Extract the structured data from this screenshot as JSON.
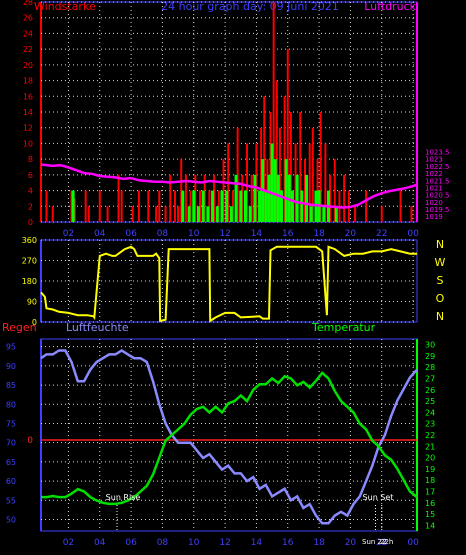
{
  "title": "24 hour graph day: 09 Juni 2021",
  "colors": {
    "background": "#000000",
    "frame": "#3f3fff",
    "wind": "#ff0000",
    "gust": "#00ff00",
    "pressure": "#ff00ff",
    "direction": "#ffff00",
    "humidity": "#8a8aff",
    "temperature": "#00e000",
    "rain": "#ff2020",
    "tick_left_top": "#ff0000",
    "tick_right_top": "#ff00ff",
    "tick_left_bottom": "#3f3fff",
    "tick_right_bottom": "#00ff00",
    "sun": "#ffffff"
  },
  "x_ticks": [
    "02",
    "04",
    "06",
    "08",
    "10",
    "12",
    "14",
    "16",
    "18",
    "20",
    "22",
    "00"
  ],
  "chart_data": [
    {
      "type": "bar",
      "name_left": "Windstärke",
      "name_right": "Luftdruck",
      "x_range_hours": [
        0.25,
        24.25
      ],
      "left_axis": {
        "min": 0,
        "max": 28,
        "ticks": [
          "0",
          "2",
          "4",
          "6",
          "8",
          "10",
          "12",
          "14",
          "16",
          "18",
          "20",
          "22",
          "24",
          "26",
          "28"
        ]
      },
      "right_axis": {
        "min": 1018.6,
        "max": 1033.9,
        "ticks": [
          "1019",
          "1019.5",
          "1020",
          "1020.5",
          "1021",
          "1021.5",
          "1022",
          "1022.5",
          "1023",
          "1023.5"
        ]
      },
      "wind_bars": [
        {
          "h": 0.6,
          "v": 4
        },
        {
          "h": 1.0,
          "v": 2
        },
        {
          "h": 2.2,
          "v": 4
        },
        {
          "h": 2.4,
          "v": 3
        },
        {
          "h": 3.1,
          "v": 4
        },
        {
          "h": 3.3,
          "v": 2
        },
        {
          "h": 4.0,
          "v": 4
        },
        {
          "h": 4.5,
          "v": 2
        },
        {
          "h": 5.2,
          "v": 6
        },
        {
          "h": 5.4,
          "v": 4
        },
        {
          "h": 6.1,
          "v": 2
        },
        {
          "h": 6.5,
          "v": 4
        },
        {
          "h": 7.1,
          "v": 4
        },
        {
          "h": 7.6,
          "v": 2
        },
        {
          "h": 7.8,
          "v": 4
        },
        {
          "h": 8.2,
          "v": 2
        },
        {
          "h": 8.5,
          "v": 6
        },
        {
          "h": 8.8,
          "v": 4
        },
        {
          "h": 9.0,
          "v": 2
        },
        {
          "h": 9.2,
          "v": 8
        },
        {
          "h": 9.5,
          "v": 6
        },
        {
          "h": 9.8,
          "v": 4
        },
        {
          "h": 10.1,
          "v": 6
        },
        {
          "h": 10.4,
          "v": 4
        },
        {
          "h": 10.7,
          "v": 6
        },
        {
          "h": 11.0,
          "v": 4
        },
        {
          "h": 11.3,
          "v": 6
        },
        {
          "h": 11.6,
          "v": 4
        },
        {
          "h": 11.9,
          "v": 8
        },
        {
          "h": 12.2,
          "v": 10
        },
        {
          "h": 12.5,
          "v": 4
        },
        {
          "h": 12.8,
          "v": 12
        },
        {
          "h": 13.1,
          "v": 6
        },
        {
          "h": 13.4,
          "v": 10
        },
        {
          "h": 13.7,
          "v": 6
        },
        {
          "h": 14.0,
          "v": 10
        },
        {
          "h": 14.3,
          "v": 12
        },
        {
          "h": 14.5,
          "v": 16
        },
        {
          "h": 14.7,
          "v": 8
        },
        {
          "h": 14.9,
          "v": 14
        },
        {
          "h": 15.1,
          "v": 28
        },
        {
          "h": 15.3,
          "v": 18
        },
        {
          "h": 15.5,
          "v": 12
        },
        {
          "h": 15.8,
          "v": 16
        },
        {
          "h": 16.0,
          "v": 22
        },
        {
          "h": 16.2,
          "v": 14
        },
        {
          "h": 16.5,
          "v": 10
        },
        {
          "h": 16.8,
          "v": 14
        },
        {
          "h": 17.1,
          "v": 8
        },
        {
          "h": 17.4,
          "v": 10
        },
        {
          "h": 17.6,
          "v": 12
        },
        {
          "h": 17.9,
          "v": 8
        },
        {
          "h": 18.1,
          "v": 14
        },
        {
          "h": 18.4,
          "v": 10
        },
        {
          "h": 18.7,
          "v": 6
        },
        {
          "h": 19.0,
          "v": 8
        },
        {
          "h": 19.3,
          "v": 4
        },
        {
          "h": 19.6,
          "v": 6
        },
        {
          "h": 19.9,
          "v": 4
        },
        {
          "h": 20.3,
          "v": 2
        },
        {
          "h": 21.0,
          "v": 4
        },
        {
          "h": 22.0,
          "v": 2
        },
        {
          "h": 23.2,
          "v": 4
        },
        {
          "h": 23.9,
          "v": 2
        }
      ],
      "gust_bars": [
        {
          "h": 2.3,
          "v": 4
        },
        {
          "h": 9.3,
          "v": 4
        },
        {
          "h": 9.7,
          "v": 2
        },
        {
          "h": 10.0,
          "v": 4
        },
        {
          "h": 10.3,
          "v": 2
        },
        {
          "h": 10.6,
          "v": 4
        },
        {
          "h": 10.9,
          "v": 2
        },
        {
          "h": 11.2,
          "v": 4
        },
        {
          "h": 11.5,
          "v": 2
        },
        {
          "h": 11.8,
          "v": 4
        },
        {
          "h": 12.1,
          "v": 4
        },
        {
          "h": 12.4,
          "v": 2
        },
        {
          "h": 12.7,
          "v": 6
        },
        {
          "h": 13.0,
          "v": 4
        },
        {
          "h": 13.3,
          "v": 4
        },
        {
          "h": 13.6,
          "v": 2
        },
        {
          "h": 13.9,
          "v": 6
        },
        {
          "h": 14.2,
          "v": 4
        },
        {
          "h": 14.4,
          "v": 8
        },
        {
          "h": 14.6,
          "v": 4
        },
        {
          "h": 14.8,
          "v": 6
        },
        {
          "h": 15.0,
          "v": 10
        },
        {
          "h": 15.2,
          "v": 8
        },
        {
          "h": 15.4,
          "v": 6
        },
        {
          "h": 15.6,
          "v": 4
        },
        {
          "h": 15.9,
          "v": 8
        },
        {
          "h": 16.1,
          "v": 6
        },
        {
          "h": 16.3,
          "v": 4
        },
        {
          "h": 16.6,
          "v": 6
        },
        {
          "h": 16.9,
          "v": 4
        },
        {
          "h": 17.2,
          "v": 6
        },
        {
          "h": 17.5,
          "v": 2
        },
        {
          "h": 17.8,
          "v": 4
        },
        {
          "h": 18.0,
          "v": 4
        },
        {
          "h": 18.3,
          "v": 2
        },
        {
          "h": 18.6,
          "v": 4
        },
        {
          "h": 19.1,
          "v": 2
        }
      ],
      "pressure": {
        "x": [
          0.25,
          1,
          1.5,
          2,
          2.5,
          3,
          3.5,
          4,
          4.5,
          5,
          5.5,
          6,
          6.5,
          7,
          7.5,
          8,
          8.5,
          9,
          9.5,
          10,
          10.5,
          11,
          11.5,
          12,
          12.5,
          13,
          13.5,
          14,
          14.5,
          15,
          15.5,
          16,
          16.5,
          17,
          17.5,
          18,
          18.5,
          19,
          19.5,
          20,
          20.5,
          21,
          21.5,
          22,
          22.5,
          23,
          23.5,
          24,
          24.25
        ],
        "y": [
          1022.6,
          1022.5,
          1022.55,
          1022.4,
          1022.2,
          1022.0,
          1021.95,
          1021.8,
          1021.75,
          1021.7,
          1021.6,
          1021.65,
          1021.5,
          1021.45,
          1021.4,
          1021.4,
          1021.35,
          1021.4,
          1021.45,
          1021.4,
          1021.35,
          1021.45,
          1021.4,
          1021.35,
          1021.3,
          1021.25,
          1021.1,
          1021.0,
          1020.8,
          1020.6,
          1020.4,
          1020.2,
          1020.0,
          1019.9,
          1019.8,
          1019.75,
          1019.7,
          1019.65,
          1019.6,
          1019.65,
          1019.8,
          1020.1,
          1020.4,
          1020.6,
          1020.75,
          1020.85,
          1020.95,
          1021.1,
          1021.2
        ]
      }
    },
    {
      "type": "line",
      "side_labels": [
        "N",
        "W",
        "S",
        "O",
        "N"
      ],
      "x_range_hours": [
        0.25,
        24.25
      ],
      "y_axis": {
        "min": 0,
        "max": 360,
        "ticks": [
          "0",
          "90",
          "180",
          "270",
          "360"
        ]
      },
      "direction": {
        "x": [
          0.25,
          0.5,
          0.6,
          1.0,
          1.4,
          2.0,
          2.6,
          3.2,
          3.6,
          3.65,
          4.0,
          4.4,
          4.8,
          5.0,
          5.6,
          6.0,
          6.2,
          6.4,
          7.0,
          7.4,
          7.6,
          7.8,
          7.85,
          8.2,
          8.4,
          9.0,
          9.6,
          9.8,
          10.2,
          10.6,
          11.0,
          11.05,
          11.4,
          12.0,
          12.6,
          13.0,
          14.2,
          14.4,
          14.8,
          14.9,
          15.3,
          16.0,
          16.6,
          17.2,
          17.8,
          18.0,
          18.2,
          18.5,
          18.6,
          19.0,
          19.6,
          20.2,
          20.8,
          21.4,
          22.0,
          22.6,
          23.2,
          23.8,
          24.25
        ],
        "y": [
          130,
          110,
          60,
          55,
          45,
          40,
          30,
          30,
          25,
          20,
          290,
          300,
          290,
          290,
          320,
          330,
          320,
          290,
          290,
          290,
          300,
          280,
          5,
          10,
          320,
          320,
          320,
          320,
          320,
          320,
          320,
          5,
          20,
          40,
          40,
          20,
          25,
          15,
          15,
          315,
          330,
          330,
          330,
          330,
          330,
          320,
          310,
          30,
          330,
          320,
          290,
          300,
          300,
          310,
          310,
          320,
          310,
          300,
          300
        ]
      }
    },
    {
      "type": "line",
      "name_left_1": "Regen",
      "name_left_2": "Luftfeuchte",
      "name_right": "Temperatur",
      "x_range_hours": [
        0.25,
        24.25
      ],
      "left_axis": {
        "min": 47,
        "max": 97,
        "ticks": [
          "50",
          "55",
          "60",
          "65",
          "70",
          "75",
          "80",
          "85",
          "90",
          "95"
        ]
      },
      "right_axis": {
        "min": 13.5,
        "max": 30.5,
        "ticks": [
          "14",
          "15",
          "16",
          "17",
          "18",
          "19",
          "20",
          "21",
          "22",
          "23",
          "24",
          "25",
          "26",
          "27",
          "28",
          "29",
          "30"
        ]
      },
      "rain_label": "0",
      "humidity": {
        "x": [
          0.25,
          0.6,
          1,
          1.4,
          1.8,
          2.2,
          2.6,
          3.0,
          3.4,
          3.8,
          4.2,
          4.6,
          5.0,
          5.4,
          5.8,
          6.2,
          6.6,
          7.0,
          7.4,
          7.8,
          8.2,
          8.6,
          9.0,
          9.4,
          9.8,
          10.2,
          10.6,
          11.0,
          11.4,
          11.8,
          12.2,
          12.6,
          13.0,
          13.4,
          13.8,
          14.2,
          14.6,
          15.0,
          15.4,
          15.8,
          16.2,
          16.6,
          17.0,
          17.4,
          17.8,
          18.2,
          18.6,
          19.0,
          19.4,
          19.8,
          20.2,
          20.6,
          21.0,
          21.4,
          21.8,
          22.2,
          22.6,
          23.0,
          23.4,
          23.8,
          24.25
        ],
        "y": [
          92,
          93,
          93,
          94,
          94,
          91,
          86,
          86,
          89,
          91,
          92,
          93,
          93,
          94,
          93,
          92,
          92,
          91,
          86,
          80,
          75,
          72,
          70,
          70,
          70,
          68,
          66,
          67,
          65,
          63,
          64,
          62,
          62,
          60,
          61,
          58,
          59,
          56,
          57,
          58,
          55,
          56,
          53,
          54,
          51,
          49,
          49,
          51,
          52,
          51,
          54,
          56,
          60,
          64,
          69,
          72,
          77,
          81,
          84,
          87,
          89
        ]
      },
      "temperature": {
        "x": [
          0.25,
          0.6,
          1,
          1.4,
          1.8,
          2.2,
          2.6,
          3.0,
          3.4,
          3.8,
          4.2,
          4.6,
          5.0,
          5.4,
          5.8,
          6.2,
          6.6,
          7.0,
          7.4,
          7.8,
          8.2,
          8.6,
          9.0,
          9.4,
          9.8,
          10.2,
          10.6,
          11.0,
          11.4,
          11.8,
          12.2,
          12.6,
          13.0,
          13.4,
          13.8,
          14.2,
          14.6,
          15.0,
          15.4,
          15.8,
          16.2,
          16.6,
          17.0,
          17.4,
          17.8,
          18.2,
          18.6,
          19.0,
          19.4,
          19.8,
          20.2,
          20.6,
          21.0,
          21.4,
          21.8,
          22.2,
          22.6,
          23.0,
          23.4,
          23.8,
          24.25
        ],
        "y": [
          16.5,
          16.5,
          16.6,
          16.5,
          16.5,
          16.8,
          17.2,
          17.0,
          16.5,
          16.2,
          16.0,
          15.9,
          15.9,
          16.0,
          16.2,
          16.5,
          17.0,
          17.5,
          18.5,
          20.0,
          21.5,
          22.0,
          22.5,
          23.0,
          23.8,
          24.3,
          24.5,
          24.0,
          24.5,
          24.0,
          24.8,
          25.0,
          25.5,
          25.0,
          26.0,
          26.5,
          26.5,
          27.0,
          26.6,
          27.2,
          27.0,
          26.4,
          26.7,
          26.2,
          26.8,
          27.5,
          27.0,
          25.9,
          25.0,
          24.5,
          24.0,
          23.0,
          22.5,
          21.5,
          21.0,
          20.2,
          19.8,
          19.0,
          18.0,
          17.0,
          16.5
        ]
      },
      "sun_rise_label": "Sun Rise",
      "sun_set_label": "Sun Set",
      "now_label_1": "Sun 22",
      "now_label_2": "22h",
      "sun_rise_hour": 5.1,
      "sun_set_hour": 21.6,
      "now_hour": 22.0
    }
  ]
}
